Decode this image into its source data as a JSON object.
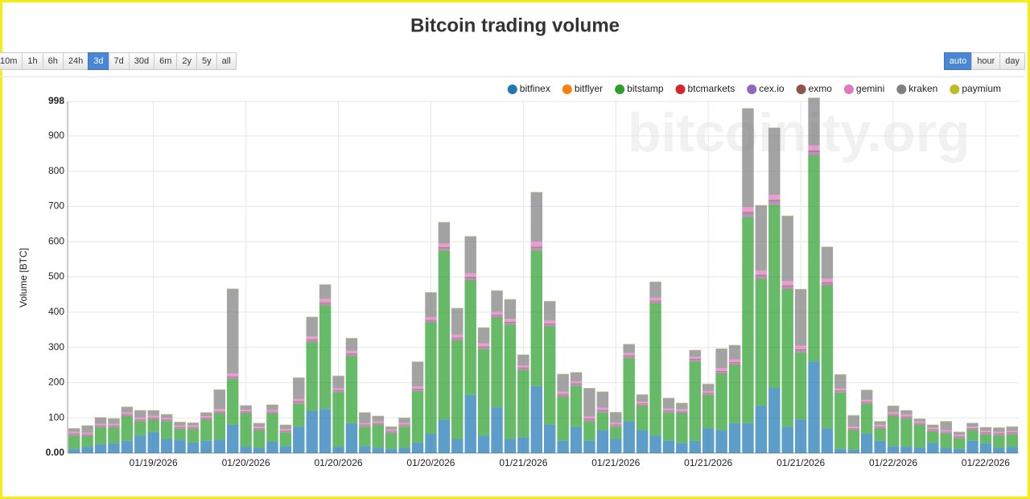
{
  "range_buttons": [
    "10m",
    "1h",
    "6h",
    "24h",
    "3d",
    "7d",
    "30d",
    "6m",
    "2y",
    "5y",
    "all"
  ],
  "view_buttons": [
    "auto",
    "hour",
    "day"
  ],
  "watermark": "bitcoinity.org",
  "chart_data": {
    "type": "stacked-bar",
    "title": "Bitcoin trading volume",
    "y_label": "Volume [BTC]",
    "ylim": [
      0,
      998
    ],
    "yticks": [
      {
        "value": 0,
        "label": "0.00"
      },
      100,
      200,
      300,
      400,
      500,
      600,
      700,
      800,
      900,
      998
    ],
    "grid": true,
    "legend": "top-right",
    "categories": [
      null,
      null,
      null,
      null,
      null,
      null,
      "01/19/2026",
      null,
      null,
      null,
      null,
      null,
      null,
      "01/20/2026",
      null,
      null,
      null,
      null,
      null,
      null,
      "01/20/2026",
      null,
      null,
      null,
      null,
      null,
      null,
      "01/20/2026",
      null,
      null,
      null,
      null,
      null,
      null,
      "01/21/2026",
      null,
      null,
      null,
      null,
      null,
      null,
      "01/21/2026",
      null,
      null,
      null,
      null,
      null,
      null,
      "01/21/2026",
      null,
      null,
      null,
      null,
      null,
      null,
      "01/21/2026",
      null,
      null,
      null,
      null,
      null,
      null,
      "01/22/2026",
      null,
      null,
      null,
      null,
      null,
      null,
      "01/22/2026",
      null,
      null
    ],
    "series": [
      {
        "name": "bitfinex",
        "color": "#1f77b4",
        "values": [
          12,
          18,
          25,
          28,
          35,
          50,
          60,
          40,
          38,
          30,
          35,
          38,
          80,
          18,
          15,
          32,
          20,
          75,
          120,
          125,
          18,
          85,
          20,
          15,
          12,
          15,
          30,
          55,
          95,
          40,
          165,
          50,
          130,
          40,
          45,
          190,
          80,
          35,
          75,
          35,
          65,
          40,
          90,
          65,
          50,
          35,
          28,
          35,
          70,
          65,
          85,
          85,
          135,
          185,
          75,
          95,
          260,
          70,
          12,
          10,
          55,
          35,
          20,
          18,
          15,
          30,
          15,
          12,
          35,
          28,
          15,
          18
        ]
      },
      {
        "name": "bitflyer",
        "color": "#ff7f0e",
        "values": [
          0,
          0,
          0,
          0,
          0,
          0,
          0,
          0,
          0,
          0,
          0,
          0,
          0,
          0,
          0,
          0,
          0,
          0,
          0,
          0,
          0,
          0,
          0,
          0,
          0,
          0,
          0,
          0,
          0,
          0,
          0,
          0,
          0,
          0,
          0,
          0,
          0,
          0,
          0,
          0,
          0,
          0,
          0,
          0,
          0,
          0,
          0,
          0,
          0,
          0,
          0,
          0,
          0,
          0,
          0,
          0,
          0,
          0,
          0,
          0,
          0,
          0,
          0,
          0,
          0,
          0,
          0,
          0,
          0,
          0,
          0,
          0
        ]
      },
      {
        "name": "bitstamp",
        "color": "#2ca02c",
        "values": [
          38,
          30,
          48,
          45,
          70,
          40,
          35,
          50,
          30,
          38,
          60,
          75,
          130,
          95,
          50,
          80,
          38,
          65,
          195,
          295,
          155,
          190,
          55,
          65,
          45,
          60,
          145,
          315,
          480,
          280,
          325,
          245,
          255,
          325,
          190,
          385,
          280,
          125,
          115,
          55,
          50,
          35,
          180,
          70,
          375,
          80,
          85,
          225,
          95,
          160,
          165,
          585,
          360,
          520,
          390,
          190,
          585,
          405,
          160,
          55,
          85,
          35,
          85,
          80,
          65,
          32,
          40,
          30,
          30,
          25,
          35,
          35
        ]
      },
      {
        "name": "btcmarkets",
        "color": "#d62728",
        "values": [
          1,
          1,
          1,
          1,
          1,
          1,
          1,
          1,
          1,
          1,
          1,
          1,
          1,
          1,
          1,
          1,
          1,
          1,
          1,
          1,
          1,
          1,
          1,
          1,
          1,
          1,
          1,
          1,
          1,
          1,
          1,
          1,
          1,
          1,
          1,
          1,
          1,
          1,
          1,
          1,
          1,
          1,
          1,
          1,
          1,
          1,
          1,
          1,
          1,
          1,
          1,
          1,
          1,
          1,
          1,
          1,
          1,
          1,
          1,
          1,
          1,
          1,
          1,
          1,
          1,
          1,
          1,
          1,
          1,
          1,
          1,
          1
        ]
      },
      {
        "name": "cex.io",
        "color": "#9467bd",
        "values": [
          3,
          3,
          3,
          3,
          3,
          3,
          3,
          3,
          3,
          3,
          3,
          3,
          4,
          3,
          3,
          3,
          3,
          4,
          4,
          4,
          3,
          4,
          3,
          3,
          3,
          3,
          4,
          4,
          5,
          4,
          5,
          4,
          4,
          4,
          4,
          6,
          4,
          4,
          4,
          4,
          4,
          3,
          4,
          3,
          4,
          3,
          3,
          4,
          3,
          4,
          4,
          8,
          6,
          8,
          6,
          5,
          8,
          5,
          3,
          3,
          3,
          3,
          3,
          3,
          3,
          3,
          3,
          3,
          3,
          3,
          3,
          3
        ]
      },
      {
        "name": "exmo",
        "color": "#8c564b",
        "values": [
          2,
          2,
          2,
          2,
          2,
          2,
          2,
          2,
          2,
          2,
          2,
          2,
          3,
          2,
          2,
          2,
          2,
          3,
          3,
          3,
          2,
          3,
          2,
          2,
          2,
          2,
          3,
          3,
          4,
          3,
          4,
          3,
          3,
          3,
          3,
          4,
          3,
          3,
          3,
          3,
          3,
          2,
          3,
          2,
          3,
          2,
          2,
          3,
          2,
          3,
          3,
          5,
          4,
          5,
          4,
          4,
          5,
          4,
          2,
          2,
          2,
          2,
          2,
          2,
          2,
          2,
          2,
          2,
          2,
          2,
          2,
          2
        ]
      },
      {
        "name": "gemini",
        "color": "#e377c2",
        "values": [
          4,
          4,
          4,
          4,
          5,
          5,
          5,
          4,
          4,
          4,
          4,
          6,
          8,
          4,
          4,
          4,
          4,
          6,
          8,
          10,
          5,
          8,
          4,
          4,
          4,
          4,
          6,
          8,
          10,
          8,
          10,
          8,
          8,
          8,
          6,
          14,
          8,
          6,
          6,
          6,
          6,
          5,
          6,
          5,
          8,
          5,
          5,
          6,
          5,
          8,
          8,
          14,
          12,
          14,
          12,
          10,
          14,
          10,
          5,
          4,
          5,
          4,
          5,
          5,
          4,
          4,
          4,
          4,
          4,
          4,
          4,
          4
        ]
      },
      {
        "name": "kraken",
        "color": "#7f7f7f",
        "values": [
          10,
          20,
          18,
          15,
          15,
          20,
          15,
          10,
          10,
          8,
          10,
          55,
          240,
          12,
          10,
          15,
          12,
          60,
          55,
          40,
          35,
          35,
          30,
          15,
          8,
          15,
          70,
          70,
          60,
          75,
          105,
          45,
          60,
          55,
          30,
          140,
          55,
          50,
          25,
          80,
          45,
          30,
          25,
          20,
          45,
          30,
          18,
          18,
          20,
          55,
          40,
          280,
          185,
          190,
          185,
          160,
          135,
          90,
          40,
          32,
          28,
          10,
          18,
          12,
          7,
          8,
          25,
          8,
          10,
          10,
          12,
          12
        ]
      },
      {
        "name": "paymium",
        "color": "#bcbd22",
        "values": [
          1,
          1,
          1,
          1,
          1,
          1,
          1,
          1,
          1,
          1,
          1,
          1,
          1,
          1,
          1,
          1,
          1,
          1,
          1,
          1,
          1,
          1,
          1,
          1,
          1,
          1,
          1,
          1,
          1,
          1,
          1,
          1,
          1,
          1,
          1,
          1,
          1,
          1,
          1,
          1,
          1,
          1,
          1,
          1,
          1,
          1,
          1,
          1,
          1,
          1,
          1,
          1,
          1,
          1,
          1,
          1,
          1,
          1,
          1,
          1,
          1,
          1,
          1,
          1,
          1,
          1,
          1,
          1,
          1,
          1,
          1,
          1
        ]
      }
    ]
  }
}
